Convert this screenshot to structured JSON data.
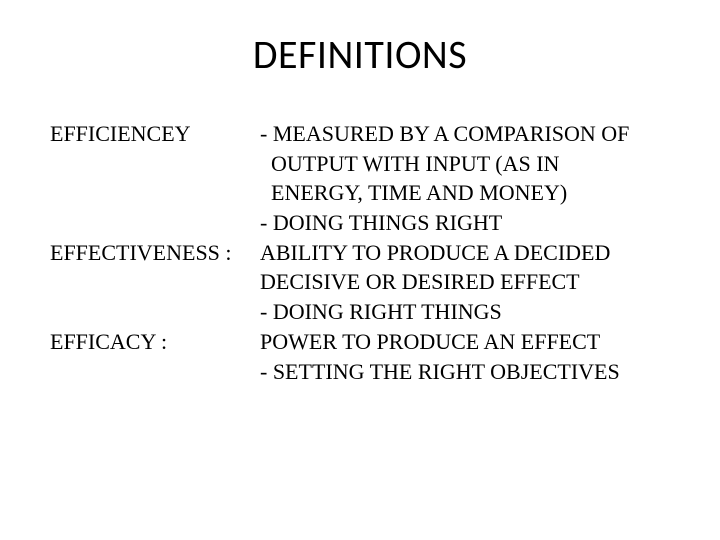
{
  "title": "DEFINITIONS",
  "rows": [
    {
      "term": "EFFICIENCEY",
      "def": "- MEASURED BY A COMPARISON OF"
    },
    {
      "term": "",
      "def": "  OUTPUT WITH INPUT (AS IN"
    },
    {
      "term": "",
      "def": "  ENERGY, TIME AND MONEY)"
    },
    {
      "term": "",
      "def": "- DOING THINGS RIGHT"
    },
    {
      "term": "EFFECTIVENESS :",
      "def": "ABILITY TO PRODUCE A DECIDED"
    },
    {
      "term": "",
      "def": "DECISIVE OR DESIRED EFFECT"
    },
    {
      "term": "",
      "def": "- DOING RIGHT THINGS"
    },
    {
      "term": "EFFICACY :",
      "def": "POWER TO PRODUCE AN EFFECT"
    },
    {
      "term": "",
      "def": "- SETTING THE RIGHT OBJECTIVES"
    }
  ],
  "colors": {
    "background": "#ffffff",
    "text": "#000000"
  },
  "typography": {
    "title_font": "Calibri",
    "title_size_pt": 30,
    "body_font": "Times New Roman",
    "body_size_pt": 17
  }
}
